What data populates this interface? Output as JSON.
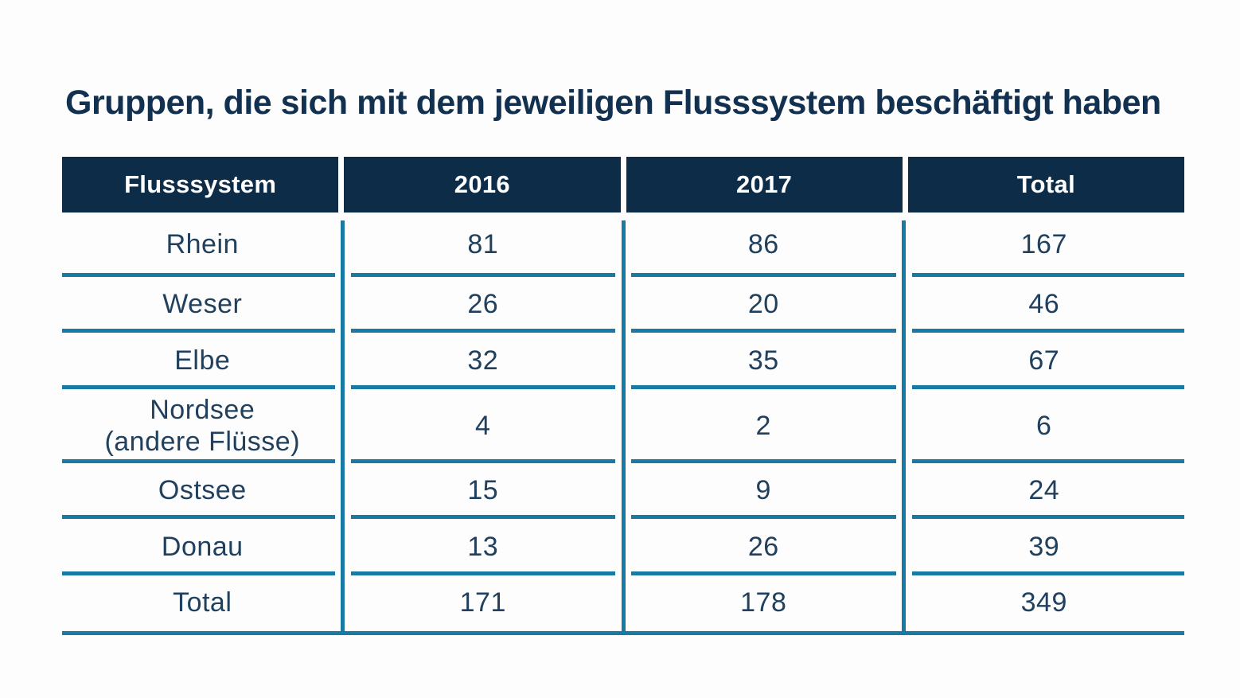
{
  "title": "Gruppen, die sich mit dem jeweiligen Flusssystem beschäftigt haben",
  "colors": {
    "header_background": "#0d2c48",
    "header_text": "#ffffff",
    "body_text": "#20405e",
    "grid_lines": "#1879a3",
    "title_text": "#12304f"
  },
  "chart_data": {
    "type": "table",
    "title": "Gruppen, die sich mit dem jeweiligen Flusssystem beschäftigt haben",
    "columns": [
      "Flusssystem",
      "2016",
      "2017",
      "Total"
    ],
    "rows": [
      {
        "label": "Rhein",
        "values": [
          81,
          86,
          167
        ]
      },
      {
        "label": "Weser",
        "values": [
          26,
          20,
          46
        ]
      },
      {
        "label": "Elbe",
        "values": [
          32,
          35,
          67
        ]
      },
      {
        "label": "Nordsee\n(andere Flüsse)",
        "values": [
          4,
          2,
          6
        ]
      },
      {
        "label": "Ostsee",
        "values": [
          15,
          9,
          24
        ]
      },
      {
        "label": "Donau",
        "values": [
          13,
          26,
          39
        ]
      },
      {
        "label": "Total",
        "values": [
          171,
          178,
          349
        ]
      }
    ],
    "layout": {
      "grid": "teal horizontal dividers per column with gaps at vertical separators, continuous bottom rule",
      "legend": "none"
    }
  }
}
